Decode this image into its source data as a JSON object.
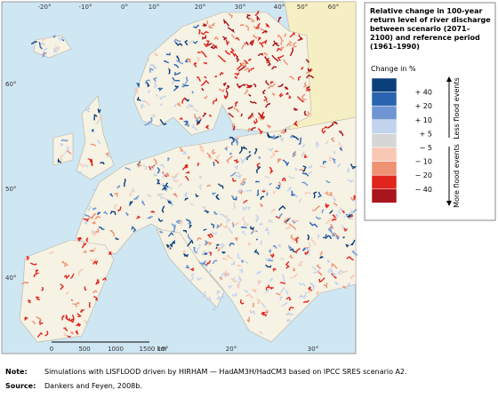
{
  "legend": {
    "title": "Relative change in 100-year return level of river discharge between scenario (2071–2100) and reference period (1961–1990)",
    "subtitle": "Change in %",
    "swatch_colors": [
      "#0a3f7a",
      "#2a64b0",
      "#6f96d2",
      "#c2d3ee",
      "#d6d6d6",
      "#f7c8b4",
      "#ee9273",
      "#e0261c",
      "#a8151c"
    ],
    "labels": [
      "+ 40",
      "+ 20",
      "+ 10",
      "+ 5",
      "− 5",
      "− 10",
      "− 20",
      "− 40"
    ],
    "less": "Less flood events",
    "more": "More flood events"
  },
  "graticule": {
    "top": [
      "-20°",
      "-10°",
      "0°",
      "10°",
      "20°",
      "30°",
      "40°",
      "50°",
      "60°"
    ],
    "left": [
      "60°",
      "50°",
      "40°"
    ],
    "bottom": [
      "10°",
      "20°",
      "30°"
    ]
  },
  "scale_bar": {
    "labels": [
      "0",
      "500",
      "1000",
      "1500 km"
    ]
  },
  "notes": [
    {
      "label": "Note:",
      "text": "Simulations with LISFLOOD driven by HIRHAM — HadAM3H/HadCM3 based on IPCC SRES scenario A2."
    },
    {
      "label": "Source:",
      "text": "Dankers and Feyen, 2008b."
    }
  ]
}
